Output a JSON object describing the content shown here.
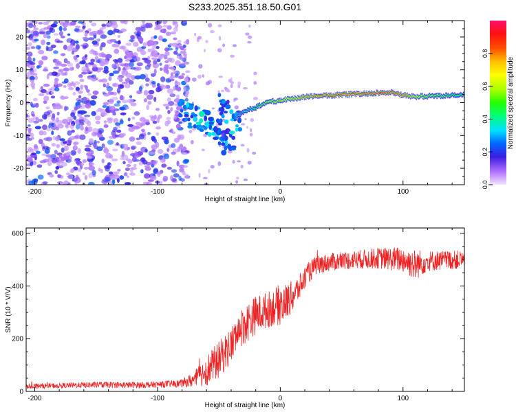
{
  "title": "S233.2025.351.18.50.G01",
  "colors": {
    "line": "#ee2222",
    "frame": "#000000",
    "background": "#ffffff"
  },
  "chart_data": [
    {
      "type": "heatmap",
      "name": "spectrogram",
      "xlabel": "Height of straight line (km)",
      "ylabel": "Frequency (Hz)",
      "xlim": [
        -207,
        150
      ],
      "ylim": [
        -25,
        25
      ],
      "xticks": [
        -200,
        -100,
        0,
        100
      ],
      "xtick_labels": [
        "-200",
        "-100",
        "0",
        "100"
      ],
      "yticks": [
        -20,
        -10,
        0,
        10,
        20
      ],
      "ytick_labels": [
        "-20",
        "-10",
        "0",
        "10",
        "20"
      ],
      "colorbar": {
        "label": "Normalized spectral amplitude",
        "range": [
          0,
          1
        ],
        "ticks": [
          0.0,
          0.2,
          0.4,
          0.6,
          0.8
        ],
        "tick_labels": [
          "0.0",
          "0.2",
          "0.4",
          "0.6",
          "0.8"
        ]
      },
      "noise_region": {
        "x_range": [
          -207,
          -75
        ],
        "y_range": [
          -25,
          25
        ],
        "amplitude_range": [
          0.05,
          0.25
        ]
      },
      "transition_clusters": [
        {
          "x": -78,
          "y": -2,
          "amp": 0.3
        },
        {
          "x": -70,
          "y": -4,
          "amp": 0.28
        },
        {
          "x": -63,
          "y": -5,
          "amp": 0.32
        },
        {
          "x": -55,
          "y": -8,
          "amp": 0.3
        },
        {
          "x": -48,
          "y": -9,
          "amp": 0.28
        },
        {
          "x": -42,
          "y": -12,
          "amp": 0.22
        },
        {
          "x": -36,
          "y": -6,
          "amp": 0.3
        },
        {
          "x": -46,
          "y": -1,
          "amp": 0.25
        }
      ],
      "ridge": {
        "x": [
          -35,
          -30,
          -25,
          -20,
          -15,
          -10,
          -5,
          0,
          5,
          10,
          15,
          20,
          30,
          40,
          50,
          60,
          70,
          80,
          90,
          100,
          110,
          120,
          130,
          140,
          150
        ],
        "y": [
          -4,
          -3,
          -2,
          -1.5,
          -0.5,
          0,
          0.5,
          0.5,
          1.0,
          1.2,
          1.5,
          1.8,
          2.0,
          2.2,
          2.4,
          2.6,
          2.8,
          3.0,
          3.1,
          2.2,
          1.8,
          2.0,
          2.1,
          2.2,
          2.3
        ],
        "amp": [
          0.35,
          0.4,
          0.45,
          0.5,
          0.55,
          0.6,
          0.62,
          0.65,
          0.7,
          0.72,
          0.75,
          0.8,
          0.85,
          0.88,
          0.9,
          0.92,
          0.93,
          0.95,
          0.97,
          0.85,
          0.7,
          0.6,
          0.55,
          0.5,
          0.5
        ]
      }
    },
    {
      "type": "line",
      "name": "snr",
      "xlabel": "Height of straight line (km)",
      "ylabel": "SNR (10 * V/V)",
      "xlim": [
        -207,
        150
      ],
      "ylim": [
        0,
        620
      ],
      "xticks": [
        -200,
        -100,
        0,
        100
      ],
      "xtick_labels": [
        "-200",
        "-100",
        "0",
        "100"
      ],
      "yticks": [
        0,
        200,
        400,
        600
      ],
      "ytick_labels": [
        "0",
        "200",
        "400",
        "600"
      ],
      "series": [
        {
          "name": "SNR",
          "x": [
            -207,
            -180,
            -150,
            -120,
            -100,
            -80,
            -70,
            -60,
            -50,
            -40,
            -35,
            -30,
            -25,
            -20,
            -15,
            -10,
            -5,
            0,
            5,
            10,
            15,
            20,
            25,
            30,
            40,
            60,
            80,
            100,
            110,
            120,
            150
          ],
          "mean": [
            20,
            22,
            25,
            24,
            26,
            30,
            45,
            80,
            120,
            175,
            220,
            250,
            270,
            290,
            300,
            310,
            320,
            330,
            340,
            360,
            390,
            430,
            460,
            480,
            490,
            500,
            505,
            500,
            480,
            495,
            500
          ],
          "noise": [
            10,
            10,
            12,
            12,
            12,
            15,
            30,
            60,
            70,
            70,
            70,
            75,
            75,
            75,
            70,
            70,
            70,
            80,
            70,
            60,
            50,
            45,
            40,
            35,
            35,
            35,
            40,
            50,
            60,
            40,
            35
          ]
        }
      ]
    }
  ]
}
